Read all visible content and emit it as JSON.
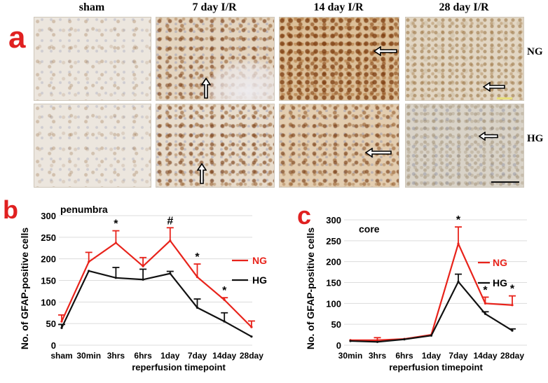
{
  "figure": {
    "panel_a": {
      "letter": "a",
      "columns": [
        "sham",
        "7 day I/R",
        "14 day I/R",
        "28 day I/R"
      ],
      "rows": [
        "NG",
        "HG"
      ]
    },
    "panel_b": {
      "letter": "b"
    },
    "panel_c": {
      "letter": "c"
    }
  },
  "chart_data": [
    {
      "type": "line",
      "panel": "b",
      "subtitle": "penumbra",
      "ylabel": "No. of GFAP-positive cells",
      "xlabel": "reperfusion timepoint",
      "categories": [
        "sham",
        "30min",
        "3hrs",
        "6hrs",
        "1day",
        "7day",
        "14day",
        "28day"
      ],
      "y_ticks": [
        "0",
        "50",
        "100",
        "150",
        "200",
        "250",
        "300"
      ],
      "ylim": [
        0,
        300
      ],
      "grid": true,
      "legend_position": "right",
      "colors": {
        "NG": "#e8231b",
        "HG": "#111111"
      },
      "series": [
        {
          "name": "NG",
          "values": [
            55,
            193,
            237,
            183,
            242,
            158,
            105,
            42
          ],
          "errors": [
            15,
            22,
            28,
            20,
            30,
            30,
            5,
            14
          ]
        },
        {
          "name": "HG",
          "values": [
            40,
            172,
            156,
            152,
            166,
            87,
            55,
            20
          ],
          "errors": [
            8,
            0,
            24,
            24,
            5,
            20,
            20,
            0
          ]
        }
      ],
      "annotations": [
        {
          "text": "*",
          "category": "3hrs"
        },
        {
          "text": "#",
          "category": "1day"
        },
        {
          "text": "*",
          "category": "7day"
        },
        {
          "text": "*",
          "category": "14day"
        }
      ]
    },
    {
      "type": "line",
      "panel": "c",
      "subtitle": "core",
      "ylabel": "No. of GFAP-positive cells",
      "xlabel": "reperfusion timepoint",
      "categories": [
        "30min",
        "3hrs",
        "6hrs",
        "1day",
        "7day",
        "14day",
        "28day"
      ],
      "y_ticks": [
        "0",
        "50",
        "100",
        "150",
        "200",
        "250",
        "300"
      ],
      "ylim": [
        0,
        300
      ],
      "grid": true,
      "legend_position": "right",
      "colors": {
        "NG": "#e8231b",
        "HG": "#111111"
      },
      "series": [
        {
          "name": "NG",
          "values": [
            12,
            12,
            15,
            25,
            243,
            100,
            96
          ],
          "errors": [
            0,
            6,
            0,
            0,
            40,
            15,
            22
          ]
        },
        {
          "name": "HG",
          "values": [
            10,
            8,
            14,
            23,
            152,
            75,
            35
          ],
          "errors": [
            0,
            0,
            0,
            0,
            18,
            5,
            4
          ]
        }
      ],
      "annotations": [
        {
          "text": "*",
          "category": "7day"
        },
        {
          "text": "*",
          "category": "14day"
        },
        {
          "text": "*",
          "category": "28day"
        }
      ]
    }
  ]
}
